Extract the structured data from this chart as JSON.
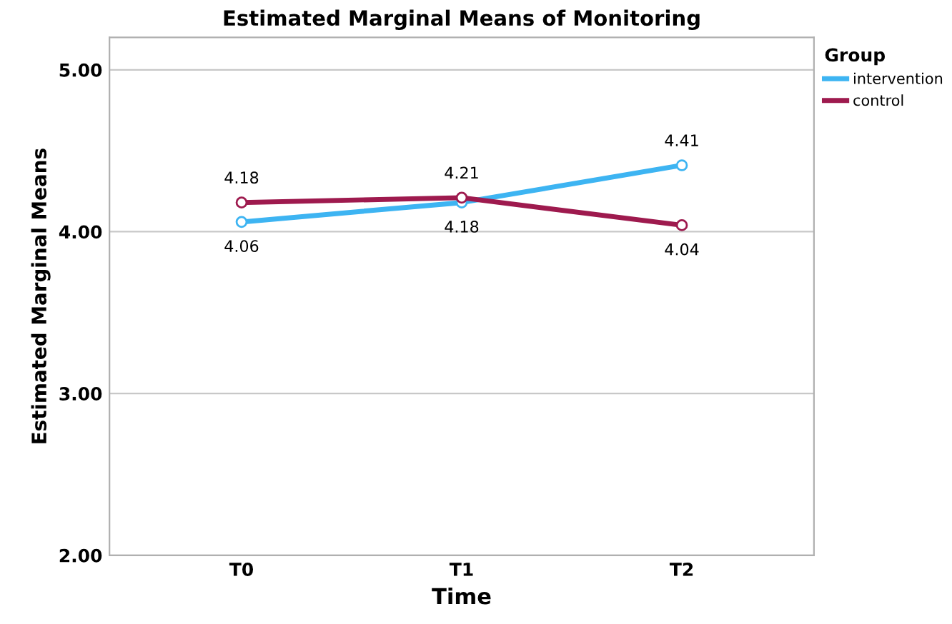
{
  "chart_data": {
    "type": "line",
    "title": "Estimated Marginal Means of Monitoring",
    "xlabel": "Time",
    "ylabel": "Estimated Marginal Means",
    "legend_title": "Group",
    "categories": [
      "T0",
      "T1",
      "T2"
    ],
    "series": [
      {
        "name": "intervention",
        "color": "#3db4f2",
        "values": [
          4.06,
          4.18,
          4.41
        ]
      },
      {
        "name": "control",
        "color": "#9e1a4e",
        "values": [
          4.18,
          4.21,
          4.04
        ]
      }
    ],
    "ylim": [
      2,
      5.2
    ],
    "yticks": [
      {
        "value": 2,
        "label": "2.00"
      },
      {
        "value": 3,
        "label": "3.00"
      },
      {
        "value": 4,
        "label": "4.00"
      },
      {
        "value": 5,
        "label": "5.00"
      }
    ],
    "grid": "y",
    "legend": "top right",
    "marker": "circle",
    "line_style": "solid",
    "data_labels": true
  }
}
